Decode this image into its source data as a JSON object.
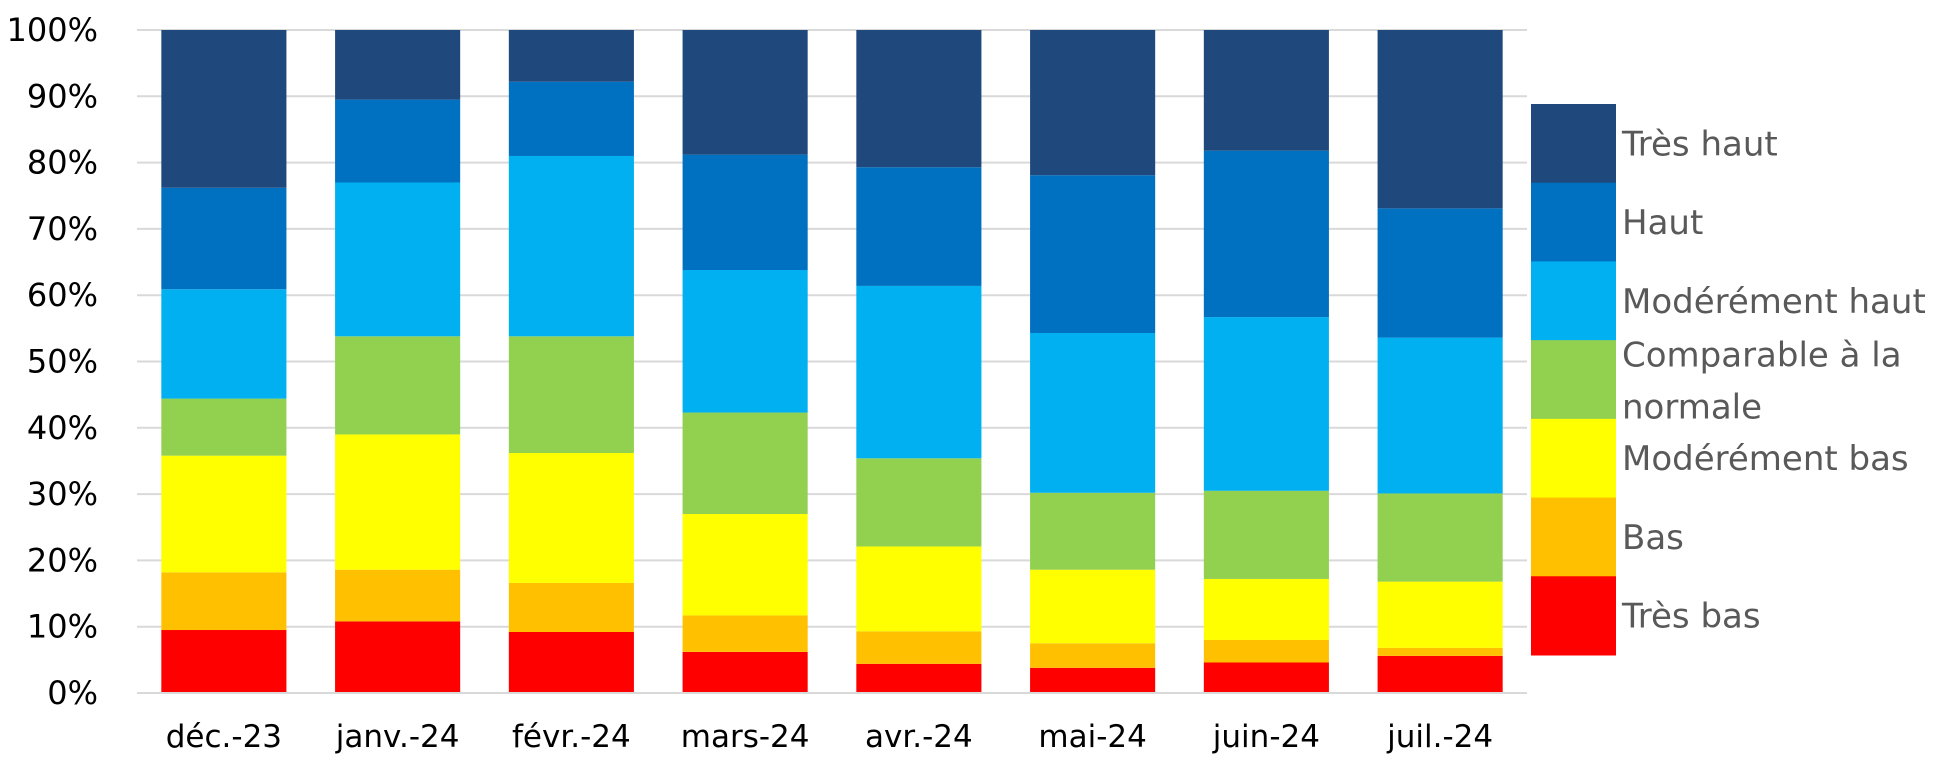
{
  "chart_data": {
    "type": "bar",
    "stacked": "percent",
    "title": "",
    "xlabel": "",
    "ylabel": "",
    "ylim": [
      0,
      100
    ],
    "y_ticks": [
      "0%",
      "10%",
      "20%",
      "30%",
      "40%",
      "50%",
      "60%",
      "70%",
      "80%",
      "90%",
      "100%"
    ],
    "grid": "horizontal",
    "legend_position": "right",
    "categories": [
      "déc.-23",
      "janv.-24",
      "févr.-24",
      "mars-24",
      "avr.-24",
      "mai-24",
      "juin-24",
      "juil.-24"
    ],
    "series": [
      {
        "name": "Très bas",
        "color": "#FF0000",
        "values": [
          9.5,
          10.8,
          9.2,
          6.2,
          4.4,
          3.8,
          4.6,
          5.6
        ]
      },
      {
        "name": "Bas",
        "color": "#FFC000",
        "values": [
          8.7,
          7.8,
          7.4,
          5.5,
          4.9,
          3.7,
          3.4,
          1.2
        ]
      },
      {
        "name": "Modérément bas",
        "color": "#FFFF00",
        "values": [
          17.6,
          20.4,
          19.6,
          15.3,
          12.8,
          11.1,
          9.2,
          10.0
        ]
      },
      {
        "name": "Comparable à la normale",
        "color": "#92D050",
        "values": [
          8.6,
          14.8,
          17.6,
          15.3,
          13.3,
          11.6,
          13.3,
          13.3
        ]
      },
      {
        "name": "Modérément haut",
        "color": "#00B0F0",
        "values": [
          16.5,
          23.2,
          27.2,
          21.5,
          26.0,
          24.1,
          26.2,
          23.5
        ]
      },
      {
        "name": "Haut",
        "color": "#0070C0",
        "values": [
          15.3,
          12.5,
          11.2,
          17.4,
          17.9,
          23.8,
          25.1,
          19.5
        ]
      },
      {
        "name": "Très haut",
        "color": "#1F497D",
        "values": [
          23.8,
          10.5,
          7.8,
          18.8,
          20.7,
          21.9,
          18.2,
          26.9
        ]
      }
    ]
  }
}
